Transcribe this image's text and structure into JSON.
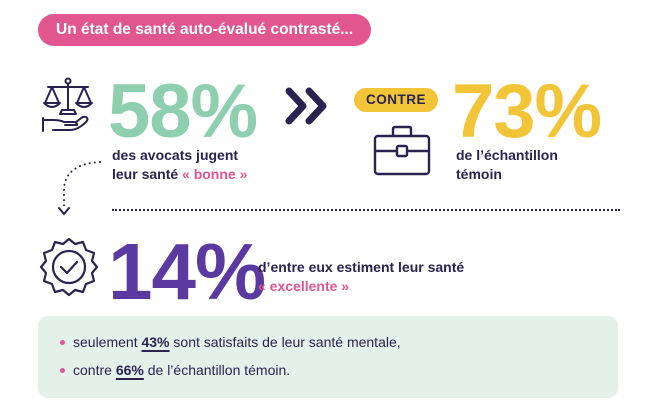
{
  "title": "Un état de santé auto-évalué contrasté...",
  "row1": {
    "left": {
      "percent": "58%",
      "caption_line1": "des avocats jugent",
      "caption_line2_prefix": "leur santé ",
      "caption_line2_highlight": "« bonne »",
      "icon": "scales-hand-icon"
    },
    "arrow_icon": "double-chevron-right-icon",
    "contre_label": "CONTRE",
    "right": {
      "percent": "73%",
      "caption_line1": "de l’échantillon",
      "caption_line2": "témoin",
      "icon": "briefcase-icon"
    }
  },
  "row2": {
    "percent": "14%",
    "caption_line1": "d’entre eux estiment leur santé",
    "caption_line2": "« excellente »",
    "icon": "badge-check-icon"
  },
  "summary": {
    "line1": {
      "prefix": "seulement ",
      "value": "43%",
      "suffix": " sont satisfaits de leur santé mentale,"
    },
    "line2": {
      "prefix": "contre ",
      "value": "66%",
      "suffix": " de l’échantillon témoin."
    }
  },
  "colors": {
    "navy": "#2a2350",
    "pink": "#e2568f",
    "green": "#8dcfae",
    "yellow": "#f2c437",
    "purple": "#5a3aa0",
    "mint_bg": "#e4f1ea"
  }
}
